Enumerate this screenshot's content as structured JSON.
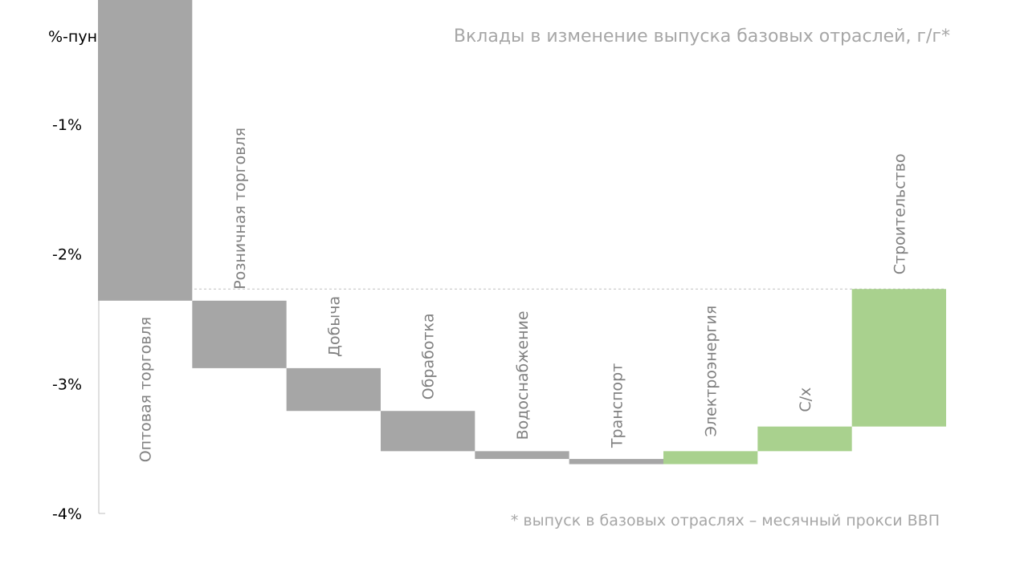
{
  "chart_data": {
    "type": "waterfall",
    "title": "Вклады в изменение выпуска базовых отраслей, г/г*",
    "ylabel": "%-пункты",
    "footnote": "* выпуск в базовых отраслях – месячный прокси ВВП",
    "ylim": [
      -4.0,
      -0.5
    ],
    "yticks": [
      -1,
      -2,
      -3,
      -4
    ],
    "ytick_labels": [
      "-1%",
      "-2%",
      "-3%",
      "-4%"
    ],
    "start": 0,
    "reference_line": -2.27,
    "grid": false,
    "colors": {
      "negative": "#a6a6a6",
      "positive": "#a9d18e",
      "axis": "#bfbfbf",
      "reference": "#bfbfbf"
    },
    "categories": [
      "Оптовая торговля",
      "Розничная торговля",
      "Добыча",
      "Обработка",
      "Водоснабжение",
      "Транспорт",
      "Электроэнергия",
      "С/х",
      "Строительство"
    ],
    "values": [
      -2.36,
      -0.52,
      -0.33,
      -0.31,
      -0.06,
      -0.04,
      0.1,
      0.19,
      1.06
    ]
  }
}
